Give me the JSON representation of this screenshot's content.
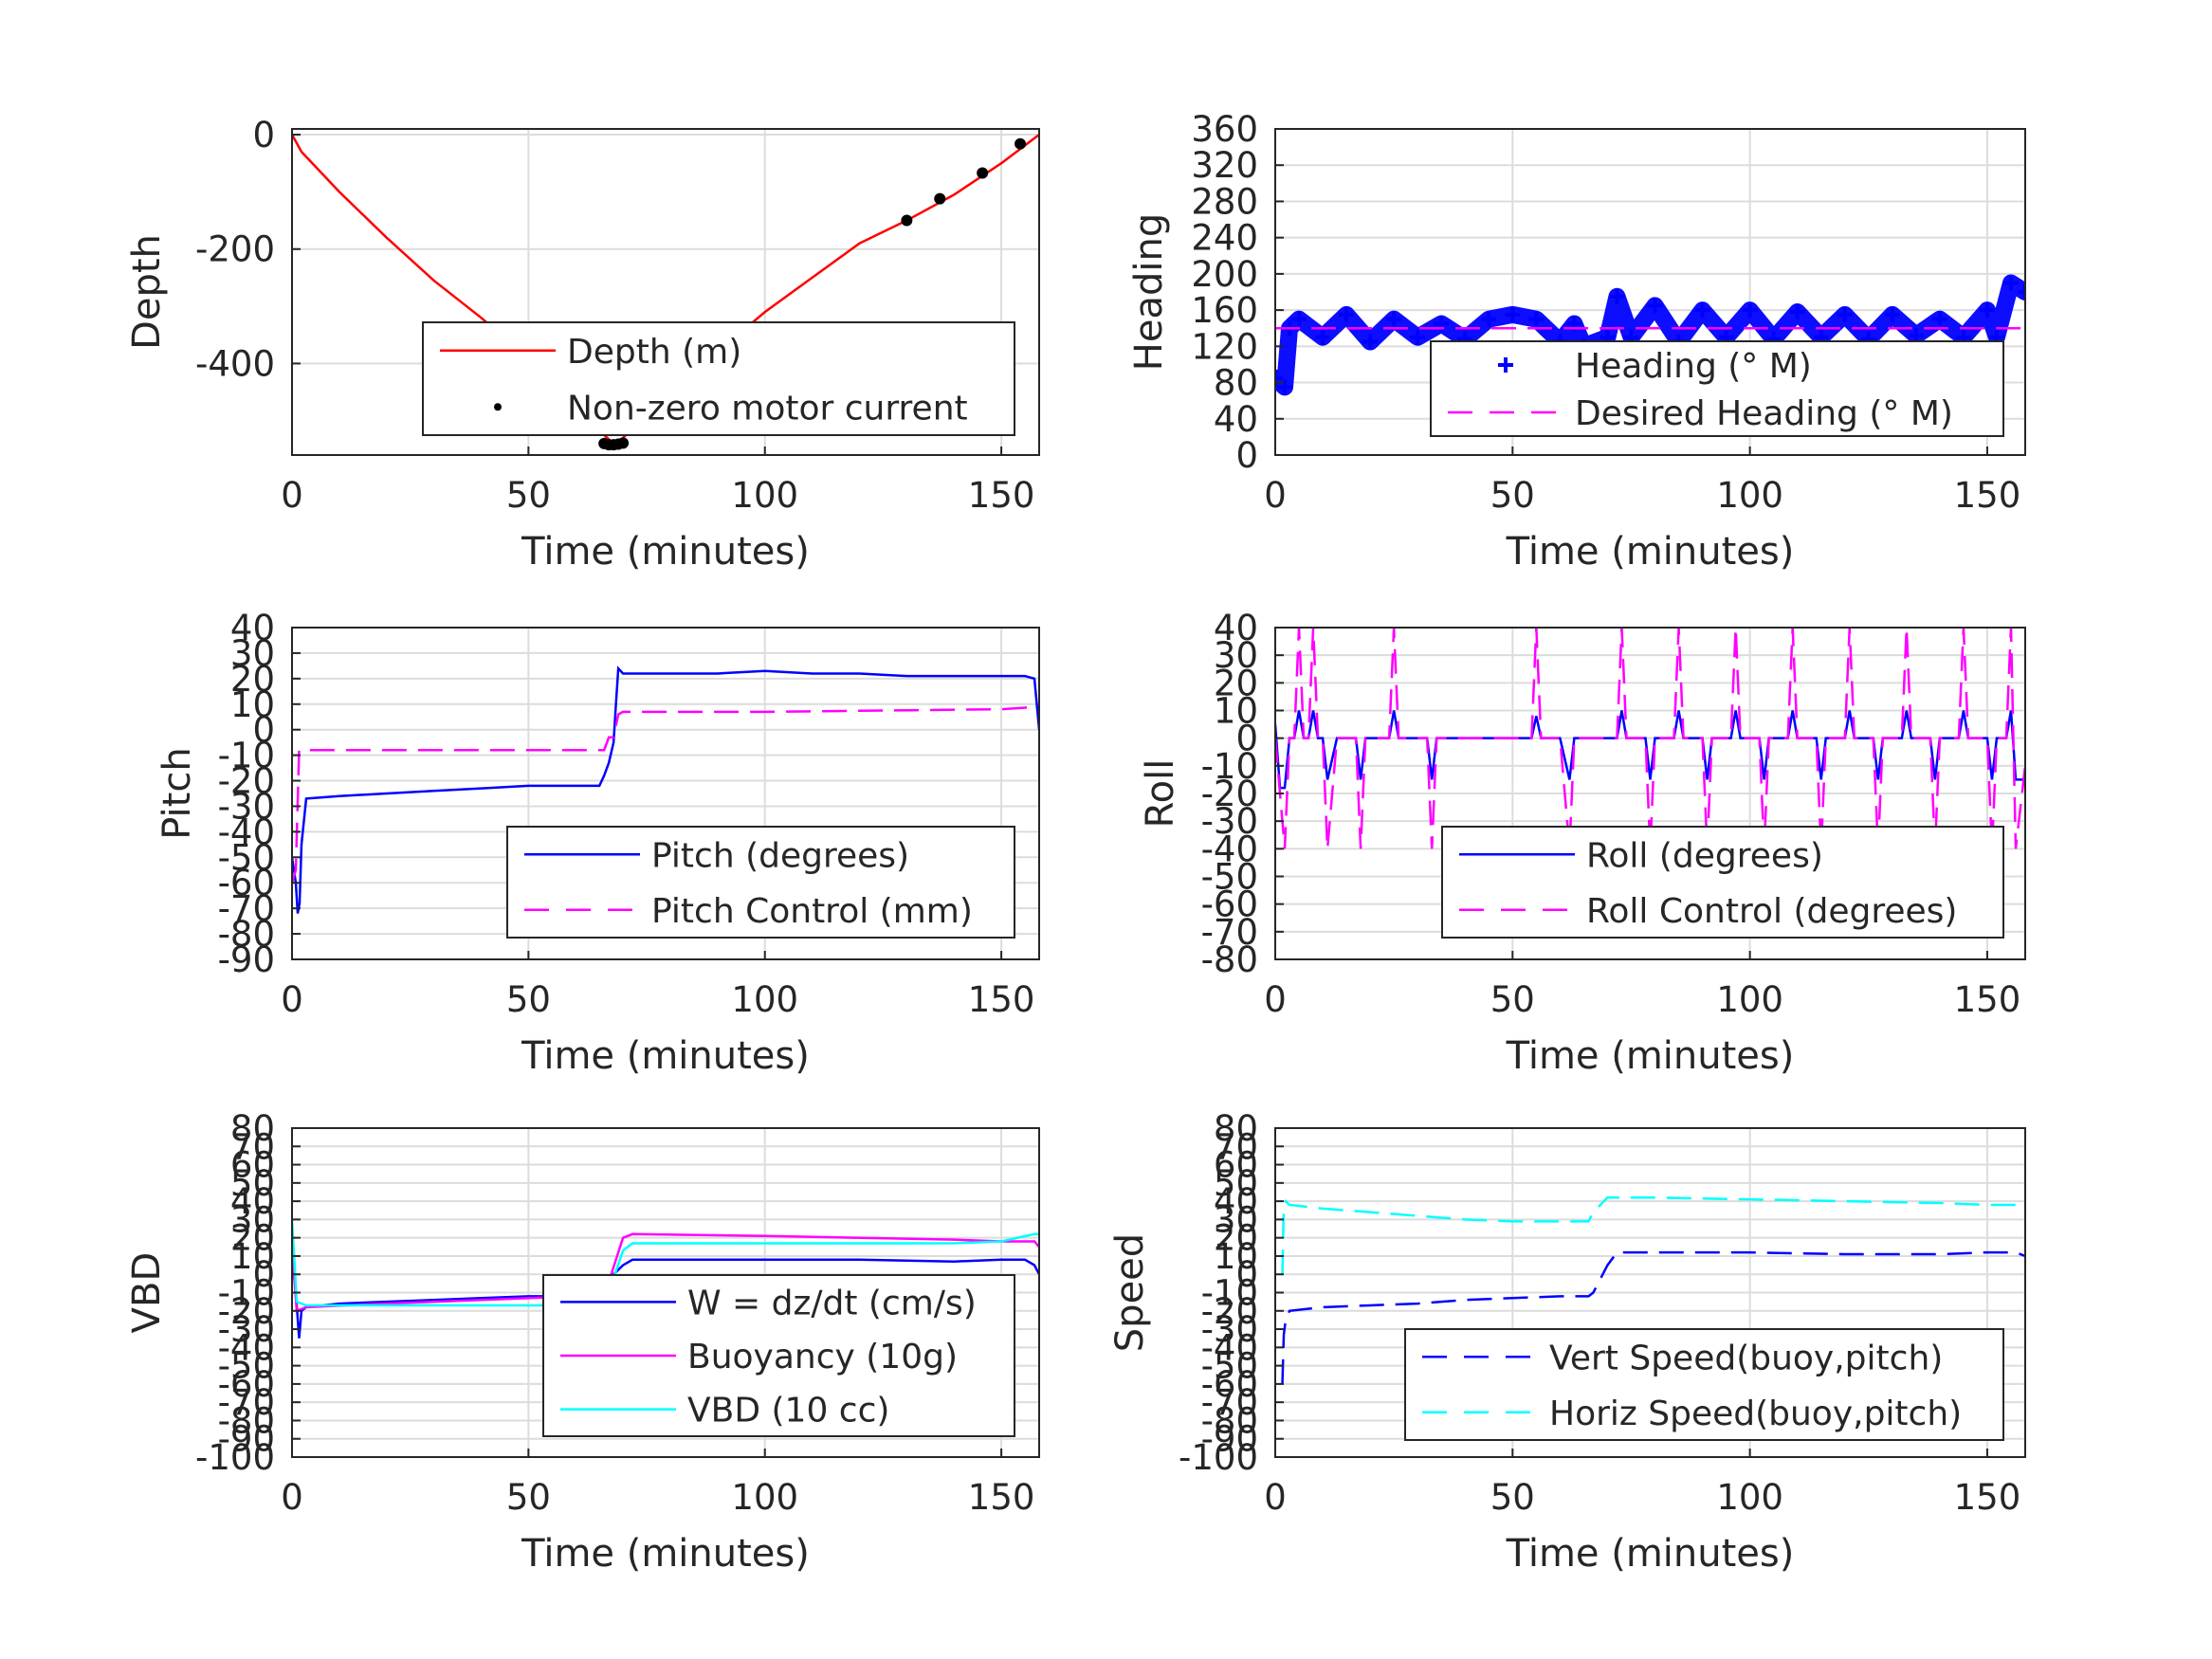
{
  "chart_data": [
    {
      "id": "depth",
      "type": "line",
      "xlabel": "Time (minutes)",
      "ylabel": "Depth",
      "xlim": [
        0,
        158
      ],
      "ylim": [
        -560,
        10
      ],
      "xticks": [
        0,
        50,
        100,
        150
      ],
      "yticks": [
        0,
        -200,
        -400
      ],
      "grid": true,
      "legend_position": "bottom-right",
      "series": [
        {
          "name": "Depth (m)",
          "style": "solid",
          "color": "#ff0000",
          "x": [
            0,
            2,
            10,
            20,
            30,
            40,
            50,
            60,
            66,
            68,
            70,
            80,
            90,
            100,
            110,
            120,
            130,
            140,
            150,
            158
          ],
          "y": [
            0,
            -30,
            -100,
            -180,
            -255,
            -320,
            -390,
            -460,
            -525,
            -540,
            -530,
            -450,
            -380,
            -310,
            -250,
            -190,
            -150,
            -105,
            -50,
            0
          ]
        },
        {
          "name": "Non-zero motor current",
          "style": "markers",
          "color": "#000000",
          "x": [
            66,
            67,
            68,
            69,
            70,
            130,
            137,
            146,
            154
          ],
          "y": [
            -540,
            -542,
            -542,
            -541,
            -539,
            -150,
            -112,
            -67,
            -16
          ]
        }
      ]
    },
    {
      "id": "heading",
      "type": "line",
      "xlabel": "Time (minutes)",
      "ylabel": "Heading",
      "xlim": [
        0,
        158
      ],
      "ylim": [
        0,
        360
      ],
      "xticks": [
        0,
        50,
        100,
        150
      ],
      "yticks": [
        0,
        40,
        80,
        120,
        160,
        200,
        240,
        280,
        320,
        360
      ],
      "grid": true,
      "legend_position": "bottom-right",
      "series": [
        {
          "name": "Heading (° M)",
          "style": "plus",
          "color": "#0000ff",
          "x": [
            0,
            2,
            3,
            5,
            10,
            15,
            20,
            25,
            30,
            35,
            40,
            45,
            50,
            55,
            60,
            63,
            65,
            70,
            72,
            75,
            80,
            85,
            90,
            95,
            100,
            105,
            110,
            115,
            120,
            125,
            130,
            135,
            140,
            145,
            150,
            152,
            155,
            158
          ],
          "y": [
            85,
            75,
            140,
            150,
            130,
            155,
            125,
            150,
            130,
            145,
            128,
            150,
            155,
            150,
            125,
            145,
            120,
            130,
            175,
            130,
            165,
            125,
            160,
            130,
            160,
            128,
            158,
            130,
            155,
            128,
            155,
            132,
            150,
            130,
            160,
            130,
            190,
            180
          ]
        },
        {
          "name": "Desired Heading (° M)",
          "style": "dashed",
          "color": "#ff00ff",
          "x": [
            0,
            158
          ],
          "y": [
            140,
            140
          ]
        }
      ]
    },
    {
      "id": "pitch",
      "type": "line",
      "xlabel": "Time (minutes)",
      "ylabel": "Pitch",
      "xlim": [
        0,
        158
      ],
      "ylim": [
        -90,
        40
      ],
      "xticks": [
        0,
        50,
        100,
        150
      ],
      "yticks": [
        40,
        30,
        20,
        10,
        0,
        -10,
        -20,
        -30,
        -40,
        -50,
        -60,
        -70,
        -80,
        -90
      ],
      "grid": true,
      "legend_position": "bottom-right",
      "series": [
        {
          "name": "Pitch (degrees)",
          "style": "solid",
          "color": "#0000ff",
          "x": [
            0,
            0.8,
            1.2,
            1.6,
            2,
            3,
            10,
            20,
            30,
            40,
            50,
            60,
            65,
            66,
            67,
            68,
            68.5,
            69,
            70,
            80,
            90,
            100,
            110,
            120,
            130,
            140,
            150,
            155,
            157,
            158
          ],
          "y": [
            -50,
            -60,
            -72,
            -68,
            -45,
            -27,
            -26,
            -25,
            -24,
            -23,
            -22,
            -22,
            -22,
            -18,
            -13,
            -5,
            10,
            24,
            22,
            22,
            22,
            23,
            22,
            22,
            21,
            21,
            21,
            21,
            20,
            0
          ]
        },
        {
          "name": "Pitch Control (mm)",
          "style": "dashed",
          "color": "#ff00ff",
          "x": [
            0,
            0.8,
            1.5,
            66,
            67,
            68,
            69,
            70,
            100,
            150,
            158
          ],
          "y": [
            -60,
            -55,
            -8,
            -8,
            -3,
            -3,
            6,
            7,
            7,
            8,
            9
          ]
        }
      ]
    },
    {
      "id": "roll",
      "type": "line",
      "xlabel": "Time (minutes)",
      "ylabel": "Roll",
      "xlim": [
        0,
        158
      ],
      "ylim": [
        -80,
        40
      ],
      "xticks": [
        0,
        50,
        100,
        150
      ],
      "yticks": [
        40,
        30,
        20,
        10,
        0,
        -10,
        -20,
        -30,
        -40,
        -50,
        -60,
        -70,
        -80
      ],
      "grid": true,
      "legend_position": "bottom-right",
      "series": [
        {
          "name": "Roll (degrees)",
          "style": "solid",
          "color": "#0000ff",
          "x": [
            0,
            1,
            2,
            3,
            4,
            5,
            6,
            7,
            8,
            9,
            10,
            11,
            13,
            15,
            17,
            18,
            19,
            20,
            22,
            24,
            25,
            26,
            28,
            32,
            33,
            34,
            36,
            45,
            50,
            54,
            55,
            56,
            58,
            60,
            62,
            63,
            64,
            66,
            70,
            72,
            73,
            74,
            76,
            78,
            79,
            80,
            82,
            84,
            85,
            86,
            88,
            90,
            91,
            92,
            94,
            96,
            97,
            98,
            100,
            102,
            103,
            104,
            106,
            108,
            109,
            110,
            112,
            114,
            115,
            116,
            118,
            120,
            121,
            122,
            124,
            126,
            127,
            128,
            130,
            132,
            133,
            134,
            136,
            138,
            139,
            140,
            142,
            144,
            145,
            146,
            148,
            150,
            151,
            152,
            154,
            155,
            156,
            158
          ],
          "y": [
            5,
            -18,
            -18,
            0,
            0,
            10,
            0,
            0,
            10,
            0,
            0,
            -15,
            0,
            0,
            0,
            -15,
            0,
            0,
            0,
            0,
            10,
            0,
            0,
            0,
            -15,
            0,
            0,
            0,
            0,
            0,
            8,
            0,
            0,
            0,
            -15,
            0,
            0,
            0,
            0,
            0,
            10,
            0,
            0,
            0,
            -15,
            0,
            0,
            0,
            10,
            0,
            0,
            0,
            -15,
            0,
            0,
            0,
            10,
            0,
            0,
            0,
            -15,
            0,
            0,
            0,
            10,
            0,
            0,
            0,
            -15,
            0,
            0,
            0,
            10,
            0,
            0,
            0,
            -15,
            0,
            0,
            0,
            10,
            0,
            0,
            0,
            -15,
            0,
            0,
            0,
            10,
            0,
            0,
            0,
            -15,
            0,
            0,
            10,
            -15,
            -15
          ]
        },
        {
          "name": "Roll Control (degrees)",
          "style": "dashed",
          "color": "#ff00ff",
          "x": [
            0,
            2,
            3,
            4,
            5,
            6,
            7,
            8,
            9,
            10,
            11,
            13,
            15,
            17,
            18,
            19,
            20,
            22,
            24,
            25,
            26,
            28,
            32,
            33,
            34,
            36,
            45,
            50,
            54,
            55,
            56,
            58,
            60,
            62,
            63,
            64,
            66,
            70,
            72,
            73,
            74,
            76,
            78,
            79,
            80,
            82,
            84,
            85,
            86,
            88,
            90,
            91,
            92,
            94,
            96,
            97,
            98,
            100,
            102,
            103,
            104,
            106,
            108,
            109,
            110,
            112,
            114,
            115,
            116,
            118,
            120,
            121,
            122,
            124,
            126,
            127,
            128,
            130,
            132,
            133,
            134,
            136,
            138,
            139,
            140,
            142,
            144,
            145,
            146,
            148,
            150,
            151,
            152,
            154,
            155,
            156,
            158
          ],
          "y": [
            0,
            -40,
            0,
            0,
            40,
            0,
            0,
            40,
            0,
            0,
            -40,
            0,
            0,
            0,
            -40,
            0,
            0,
            0,
            0,
            40,
            0,
            0,
            0,
            -40,
            0,
            0,
            0,
            0,
            0,
            40,
            0,
            0,
            0,
            -40,
            0,
            0,
            0,
            0,
            0,
            40,
            0,
            0,
            0,
            -40,
            0,
            0,
            0,
            40,
            0,
            0,
            0,
            -40,
            0,
            0,
            0,
            40,
            0,
            0,
            0,
            -40,
            0,
            0,
            0,
            40,
            0,
            0,
            0,
            -40,
            0,
            0,
            0,
            40,
            0,
            0,
            0,
            -40,
            0,
            0,
            0,
            40,
            0,
            0,
            0,
            -40,
            0,
            0,
            0,
            40,
            0,
            0,
            0,
            -40,
            0,
            0,
            40,
            -40,
            -10
          ]
        }
      ]
    },
    {
      "id": "vbd",
      "type": "line",
      "xlabel": "Time (minutes)",
      "ylabel": "VBD",
      "xlim": [
        0,
        158
      ],
      "ylim": [
        -100,
        80
      ],
      "xticks": [
        0,
        50,
        100,
        150
      ],
      "yticks": [
        80,
        70,
        60,
        50,
        40,
        30,
        20,
        10,
        0,
        -10,
        -20,
        -30,
        -40,
        -50,
        -60,
        -70,
        -80,
        -90,
        -100
      ],
      "ytick_labels": [
        "80",
        "70",
        "60",
        "50",
        "40",
        "30",
        "20",
        "10",
        "0",
        "-10",
        "-20",
        "-30",
        "-40",
        "-50",
        "-60",
        "-70",
        "-80",
        "-90",
        "-100"
      ],
      "grid": true,
      "legend_position": "bottom-right",
      "series": [
        {
          "name": "W = dz/dt (cm/s)",
          "style": "solid",
          "color": "#0000ff",
          "x": [
            0,
            0.8,
            1.5,
            2,
            3,
            10,
            20,
            30,
            40,
            50,
            60,
            65,
            67,
            68,
            70,
            72,
            80,
            100,
            120,
            140,
            150,
            155,
            157,
            158
          ],
          "y": [
            10,
            -10,
            -35,
            -20,
            -18,
            -16,
            -15,
            -14,
            -13,
            -12,
            -12,
            -12,
            -5,
            0,
            5,
            8,
            8,
            8,
            8,
            7,
            8,
            8,
            5,
            0
          ]
        },
        {
          "name": "Buoyancy (10g)",
          "style": "solid",
          "color": "#ff00ff",
          "x": [
            0,
            1,
            3,
            20,
            40,
            60,
            65,
            66,
            70,
            72,
            100,
            140,
            150,
            157,
            158
          ],
          "y": [
            15,
            -20,
            -18,
            -16,
            -14,
            -12,
            -12,
            -12,
            20,
            22,
            21,
            19,
            18,
            18,
            15
          ]
        },
        {
          "name": "VBD (10 cc)",
          "style": "solid",
          "color": "#00ffff",
          "x": [
            0,
            1,
            3,
            20,
            40,
            60,
            65,
            66,
            70,
            72,
            100,
            140,
            150,
            157,
            158
          ],
          "y": [
            30,
            -15,
            -17,
            -17,
            -17,
            -17,
            -17,
            -17,
            13,
            17,
            17,
            17,
            18,
            22,
            22
          ]
        }
      ]
    },
    {
      "id": "speed",
      "type": "line",
      "xlabel": "Time (minutes)",
      "ylabel": "Speed",
      "xlim": [
        0,
        158
      ],
      "ylim": [
        -100,
        80
      ],
      "xticks": [
        0,
        50,
        100,
        150
      ],
      "yticks": [
        80,
        70,
        60,
        50,
        40,
        30,
        20,
        10,
        0,
        -10,
        -20,
        -30,
        -40,
        -50,
        -60,
        -70,
        -80,
        -90,
        -100
      ],
      "ytick_labels": [
        "80",
        "70",
        "60",
        "50",
        "40",
        "30",
        "20",
        "10",
        "0",
        "-10",
        "-20",
        "-30",
        "-40",
        "-50",
        "-60",
        "-70",
        "-80",
        "-90",
        "-100"
      ],
      "grid": true,
      "legend_position": "bottom-right",
      "series": [
        {
          "name": "Vert Speed(buoy,pitch)",
          "style": "dashed",
          "color": "#0000ff",
          "x": [
            1.5,
            1.8,
            2.2,
            3,
            10,
            20,
            30,
            40,
            50,
            60,
            65,
            66,
            67,
            70,
            72,
            80,
            100,
            120,
            140,
            150,
            156,
            158
          ],
          "y": [
            -60,
            -33,
            -25,
            -20,
            -18,
            -17,
            -16,
            -14,
            -13,
            -12,
            -12,
            -12,
            -10,
            5,
            12,
            12,
            12,
            11,
            11,
            12,
            12,
            10
          ]
        },
        {
          "name": "Horiz Speed(buoy,pitch)",
          "style": "dashed",
          "color": "#00ffff",
          "x": [
            1.5,
            1.8,
            2.2,
            3,
            10,
            20,
            30,
            40,
            50,
            60,
            65,
            66,
            67,
            70,
            72,
            80,
            100,
            120,
            140,
            150,
            156,
            158
          ],
          "y": [
            0,
            38,
            40,
            38,
            36,
            34,
            32,
            30,
            29,
            29,
            29,
            29,
            34,
            42,
            42,
            42,
            41,
            40,
            39,
            38,
            38,
            36
          ]
        }
      ]
    }
  ]
}
